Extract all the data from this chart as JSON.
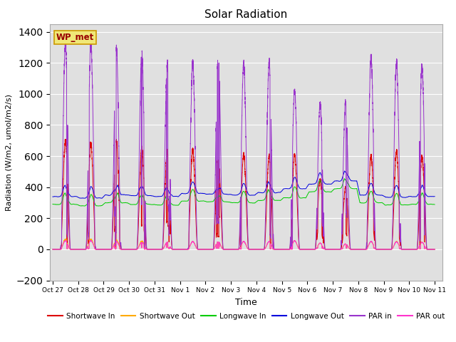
{
  "title": "Solar Radiation",
  "xlabel": "Time",
  "ylabel": "Radiation (W/m2, umol/m2/s)",
  "ylim": [
    -200,
    1450
  ],
  "x_tick_labels": [
    "Oct 27",
    "Oct 28",
    "Oct 29",
    "Oct 30",
    "Oct 31",
    "Nov 1",
    "Nov 2",
    "Nov 3",
    "Nov 4",
    "Nov 5",
    "Nov 6",
    "Nov 7",
    "Nov 8",
    "Nov 9",
    "Nov 10",
    "Nov 11"
  ],
  "x_tick_positions": [
    0,
    1,
    2,
    3,
    4,
    5,
    6,
    7,
    8,
    9,
    10,
    11,
    12,
    13,
    14,
    15
  ],
  "station_label": "WP_met",
  "bg_color": "#e0e0e0",
  "fig_bg": "#ffffff",
  "shortwave_in_color": "#dd0000",
  "shortwave_out_color": "#ffaa00",
  "longwave_in_color": "#00cc00",
  "longwave_out_color": "#0000dd",
  "par_in_color": "#9933cc",
  "par_out_color": "#ff33cc",
  "shortwave_in_peaks": [
    700,
    680,
    700,
    660,
    630,
    640,
    600,
    610,
    600,
    610,
    450,
    400,
    600,
    630,
    600
  ],
  "par_in_peaks": [
    1330,
    1320,
    1300,
    1270,
    1190,
    1200,
    1250,
    1190,
    1200,
    1020,
    940,
    950,
    1230,
    1200,
    1180
  ],
  "shortwave_out_peaks": [
    65,
    65,
    60,
    55,
    45,
    50,
    50,
    50,
    50,
    55,
    40,
    35,
    50,
    50,
    45
  ],
  "par_out_peaks": [
    55,
    55,
    50,
    45,
    45,
    50,
    50,
    50,
    50,
    55,
    40,
    35,
    50,
    48,
    45
  ],
  "longwave_in_day_vals": [
    290,
    280,
    300,
    290,
    285,
    310,
    305,
    300,
    315,
    330,
    370,
    390,
    300,
    285,
    290
  ],
  "longwave_out_day_vals": [
    340,
    330,
    350,
    345,
    340,
    360,
    355,
    350,
    365,
    390,
    420,
    440,
    350,
    335,
    340
  ]
}
